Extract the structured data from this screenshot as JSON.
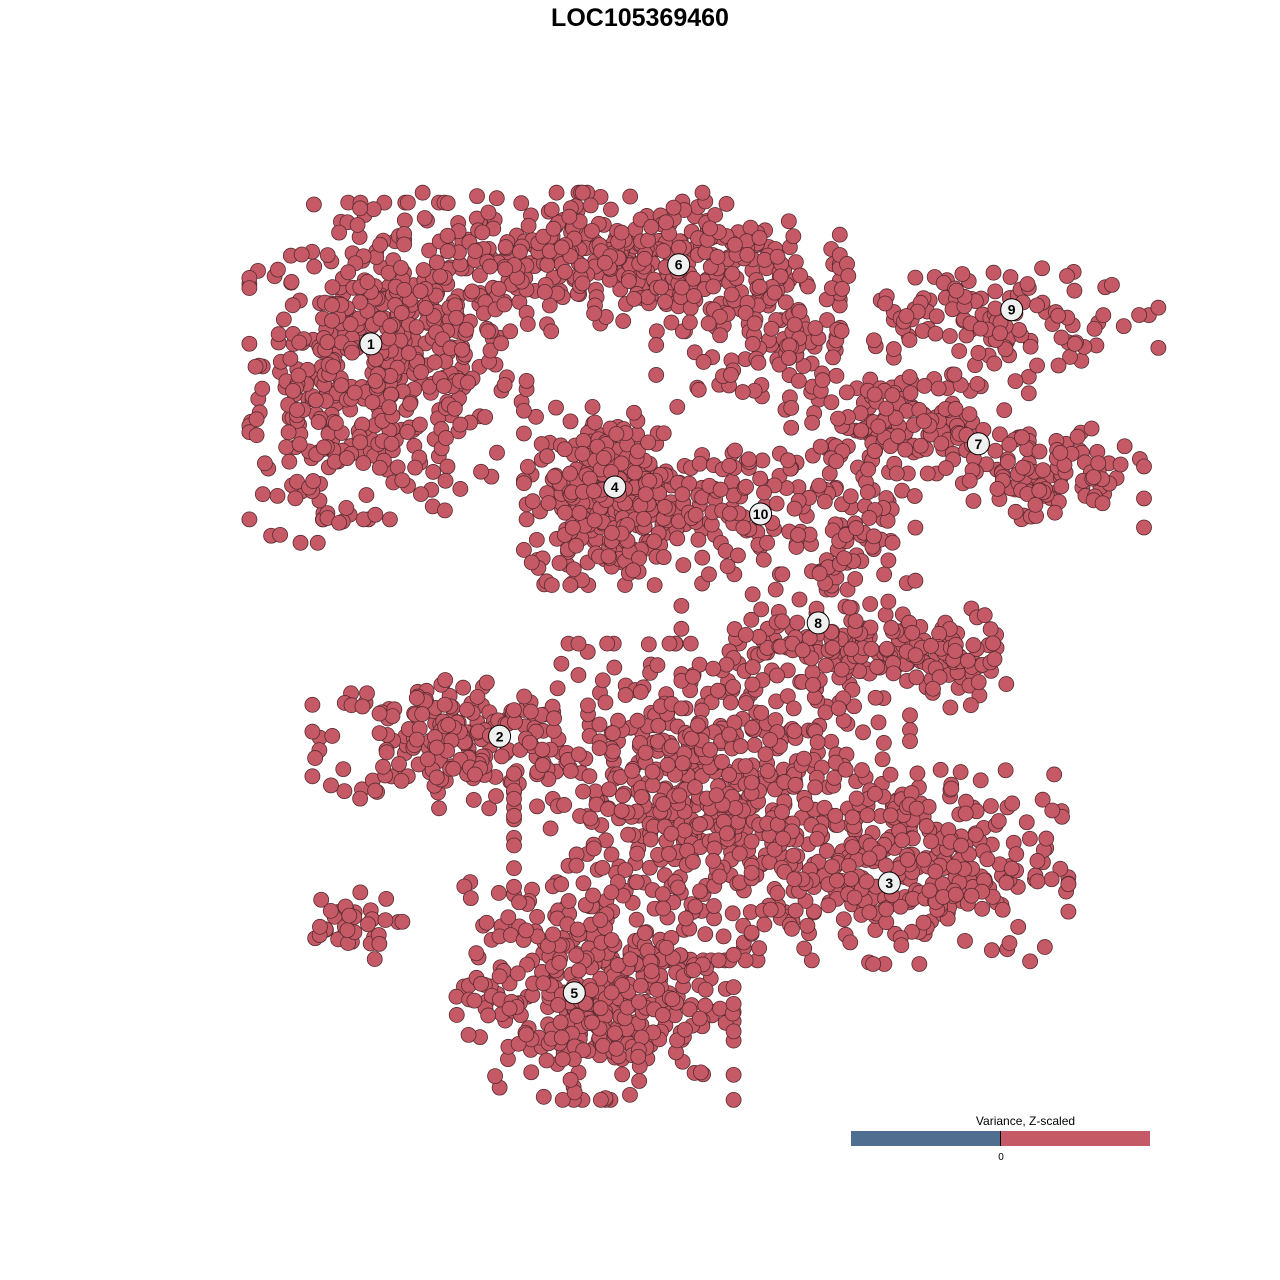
{
  "chart_data": {
    "type": "scatter",
    "title": "LOC105369460",
    "xlabel": "",
    "ylabel": "",
    "grid": false,
    "axes_visible": false,
    "point_color": "#c55a66",
    "point_edge_color": "#5a2a30",
    "label_fill": "#f0f0f0",
    "clusters": [
      {
        "label": "1",
        "center": [
          -29.9,
          32.9
        ],
        "blobs": [
          {
            "c": [
              -28,
              31
            ],
            "sd": [
              7,
              8
            ],
            "n": 480
          },
          {
            "c": [
              -36,
              24
            ],
            "sd": [
              3,
              6
            ],
            "n": 60
          }
        ]
      },
      {
        "label": "2",
        "center": [
          -15.6,
          -10.7
        ],
        "blobs": [
          {
            "c": [
              -21,
              -11
            ],
            "sd": [
              7,
              3.5
            ],
            "n": 200
          },
          {
            "c": [
              -33,
              -32
            ],
            "sd": [
              3,
              1.8
            ],
            "n": 35
          }
        ]
      },
      {
        "label": "3",
        "center": [
          27.7,
          -27
        ],
        "blobs": [
          {
            "c": [
              8,
              -18
            ],
            "sd": [
              10,
              8
            ],
            "n": 650
          },
          {
            "c": [
              30,
              -25
            ],
            "sd": [
              8,
              5
            ],
            "n": 300
          }
        ]
      },
      {
        "label": "4",
        "center": [
          -2.8,
          17
        ],
        "blobs": [
          {
            "c": [
              -3,
              16
            ],
            "sd": [
              4.5,
              4.5
            ],
            "n": 350
          }
        ]
      },
      {
        "label": "5",
        "center": [
          -7.3,
          -39.2
        ],
        "blobs": [
          {
            "c": [
              -5,
              -39
            ],
            "sd": [
              7,
              5.5
            ],
            "n": 420
          }
        ]
      },
      {
        "label": "6",
        "center": [
          4.3,
          41.7
        ],
        "blobs": [
          {
            "c": [
              -2,
              42
            ],
            "sd": [
              11,
              3.5
            ],
            "n": 420
          },
          {
            "c": [
              15,
              34
            ],
            "sd": [
              6,
              4
            ],
            "n": 120
          }
        ]
      },
      {
        "label": "7",
        "center": [
          37.6,
          21.8
        ],
        "blobs": [
          {
            "c": [
              30,
              24
            ],
            "sd": [
              6,
              2.5
            ],
            "n": 150
          },
          {
            "c": [
              45,
              18
            ],
            "sd": [
              5,
              2.5
            ],
            "n": 110
          }
        ]
      },
      {
        "label": "8",
        "center": [
          19.8,
          1.9
        ],
        "blobs": [
          {
            "c": [
              20,
              -1
            ],
            "sd": [
              7,
              3
            ],
            "n": 120
          },
          {
            "c": [
              33,
              -2
            ],
            "sd": [
              3.5,
              2.5
            ],
            "n": 90
          },
          {
            "c": [
              24,
              10
            ],
            "sd": [
              3,
              5
            ],
            "n": 90
          }
        ]
      },
      {
        "label": "9",
        "center": [
          41.3,
          36.7
        ],
        "blobs": [
          {
            "c": [
              40,
              36
            ],
            "sd": [
              8,
              2.5
            ],
            "n": 120
          }
        ]
      },
      {
        "label": "10",
        "center": [
          13.4,
          14
        ],
        "blobs": [
          {
            "c": [
              13,
              15
            ],
            "sd": [
              4,
              3.5
            ],
            "n": 80
          }
        ]
      }
    ],
    "legend": {
      "title": "Variance, Z-scaled",
      "tick_label": "0",
      "colors": {
        "negative": "#506e90",
        "positive": "#c55a66"
      },
      "placement": "bottom-right"
    }
  }
}
